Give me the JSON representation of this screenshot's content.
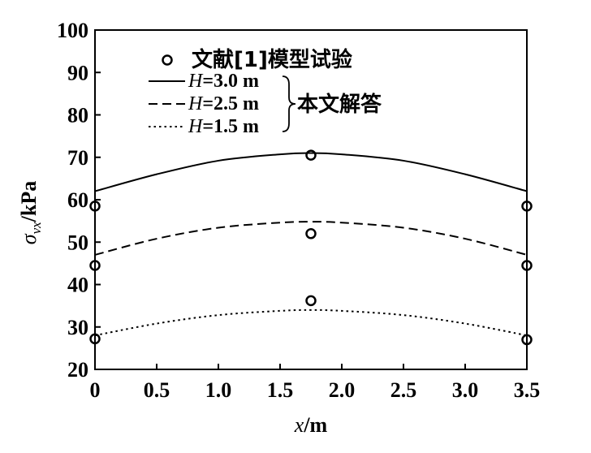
{
  "chart_data": {
    "type": "line",
    "xlabel": {
      "var": "x",
      "unit": "/m"
    },
    "ylabel": {
      "var": "σ",
      "sub": "vx",
      "unit": "/kPa"
    },
    "xlim": [
      0,
      3.5
    ],
    "ylim": [
      20,
      100
    ],
    "x_ticks": [
      "0",
      "0.5",
      "1.0",
      "1.5",
      "2.0",
      "2.5",
      "3.0",
      "3.5"
    ],
    "y_ticks": [
      "20",
      "30",
      "40",
      "50",
      "60",
      "70",
      "80",
      "90",
      "100"
    ],
    "grid": false,
    "legend_position": "top-center",
    "scatter_series": {
      "name": "文献[1]模型试验",
      "points": [
        {
          "x": 0,
          "y": 58.5
        },
        {
          "x": 1.75,
          "y": 70.5
        },
        {
          "x": 3.5,
          "y": 58.5
        },
        {
          "x": 0,
          "y": 44.5
        },
        {
          "x": 1.75,
          "y": 52.0
        },
        {
          "x": 3.5,
          "y": 44.5
        },
        {
          "x": 0,
          "y": 27.2
        },
        {
          "x": 1.75,
          "y": 36.2
        },
        {
          "x": 3.5,
          "y": 27.0
        }
      ]
    },
    "line_series": [
      {
        "name": "H=3.0 m",
        "dash": "solid",
        "x": [
          0,
          0.5,
          1.0,
          1.5,
          1.75,
          2.0,
          2.5,
          3.0,
          3.5
        ],
        "y": [
          62.0,
          66.0,
          69.2,
          70.7,
          71.0,
          70.7,
          69.2,
          66.0,
          62.0
        ]
      },
      {
        "name": "H=2.5 m",
        "dash": "dashed",
        "x": [
          0,
          0.5,
          1.0,
          1.5,
          1.75,
          2.0,
          2.5,
          3.0,
          3.5
        ],
        "y": [
          47.0,
          50.8,
          53.4,
          54.6,
          54.8,
          54.6,
          53.4,
          50.8,
          47.0
        ]
      },
      {
        "name": "H=1.5 m",
        "dash": "dotted",
        "x": [
          0,
          0.5,
          1.0,
          1.5,
          1.75,
          2.0,
          2.5,
          3.0,
          3.5
        ],
        "y": [
          28.0,
          30.8,
          32.8,
          33.8,
          34.0,
          33.8,
          32.8,
          30.8,
          28.0
        ]
      }
    ],
    "legend": {
      "scatter_label": "文献[1]模型试验",
      "line_labels": [
        {
          "var": "H",
          "value": "=3.0 m"
        },
        {
          "var": "H",
          "value": "=2.5 m"
        },
        {
          "var": "H",
          "value": "=1.5 m"
        }
      ],
      "group_label": "本文解答"
    }
  }
}
